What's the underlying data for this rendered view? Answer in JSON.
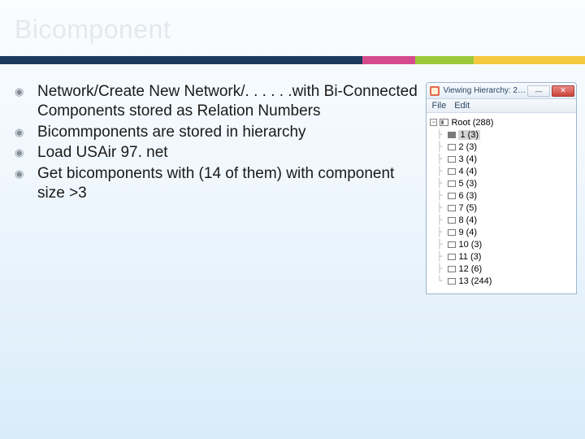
{
  "title": "Bicomponent",
  "bullets": [
    "Network/Create New Network/. . . . . .with Bi-Connected Components stored as Relation Numbers",
    "Bicommponents are stored in hierarchy",
    "Load USAir 97. net",
    "Get bicomponents with (14 of them) with component size >3"
  ],
  "window": {
    "title": "Viewing Hierarchy: 2…",
    "menu": [
      "File",
      "Edit"
    ],
    "minimize_glyph": "—",
    "close_glyph": "✕",
    "tree_root": "Root (288)",
    "tree_items": [
      "1 (3)",
      "2 (3)",
      "3 (4)",
      "4 (4)",
      "5 (3)",
      "6 (3)",
      "7 (5)",
      "8 (4)",
      "9 (4)",
      "10 (3)",
      "11 (3)",
      "12 (6)",
      "13 (244)"
    ]
  },
  "colors": {
    "navy": "#1e3a5f",
    "pink": "#d64b8e",
    "green": "#9cc93b",
    "yellow": "#f5c93d"
  }
}
